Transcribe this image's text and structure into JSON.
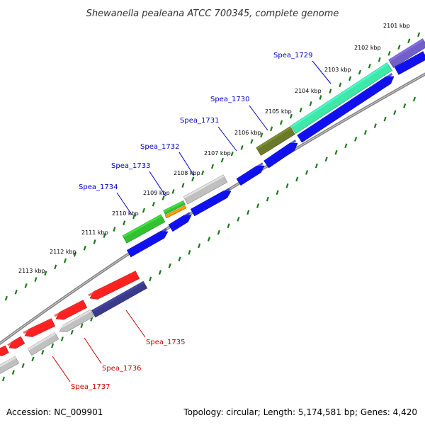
{
  "title": "Shewanella pealeana ATCC 700345, complete genome",
  "footer": {
    "accession": "Accession: NC_009901",
    "summary": "Topology: circular; Length: 5,174,581 bp; Genes: 4,420"
  },
  "colors": {
    "tick": "#1a7a1a",
    "backbone": "#808080",
    "label_blue": "#0000cc",
    "label_red": "#cc0000"
  },
  "scale_labels": [
    "2101 kbp",
    "2102 kbp",
    "2103 kbp",
    "2104 kbp",
    "2105 kbp",
    "2106 kbp",
    "2107 kbp",
    "2108 kbp",
    "2109 kbp",
    "2110 kbp",
    "2111 kbp",
    "2112 kbp",
    "2113 kbp"
  ],
  "gene_labels": [
    {
      "name": "Spea_1729",
      "strand": "forward"
    },
    {
      "name": "Spea_1730",
      "strand": "forward"
    },
    {
      "name": "Spea_1731",
      "strand": "forward"
    },
    {
      "name": "Spea_1732",
      "strand": "forward"
    },
    {
      "name": "Spea_1733",
      "strand": "forward"
    },
    {
      "name": "Spea_1734",
      "strand": "forward"
    },
    {
      "name": "Spea_1735",
      "strand": "reverse"
    },
    {
      "name": "Spea_1736",
      "strand": "reverse"
    },
    {
      "name": "Spea_1737",
      "strand": "reverse"
    }
  ],
  "features": [
    {
      "track": "outer",
      "color": "#7060c8"
    },
    {
      "track": "outer",
      "color": "#3de8a8"
    },
    {
      "track": "outer",
      "color": "#6b7a2a"
    },
    {
      "track": "outer",
      "color": "#c0c0c0"
    },
    {
      "track": "outer",
      "color": "#33c033"
    },
    {
      "track": "outer",
      "color": "#ff8800"
    },
    {
      "track": "outer",
      "color": "#33c033"
    },
    {
      "track": "outer",
      "color": "#ff2020"
    },
    {
      "track": "outer",
      "color": "#ff2020"
    },
    {
      "track": "outer",
      "color": "#ff2020"
    },
    {
      "track": "outer",
      "color": "#ff2020"
    },
    {
      "track": "outer",
      "color": "#ff2020"
    },
    {
      "track": "inner",
      "color": "#1010ee"
    },
    {
      "track": "inner",
      "color": "#1010ee"
    },
    {
      "track": "inner",
      "color": "#1010ee"
    },
    {
      "track": "inner",
      "color": "#1010ee"
    },
    {
      "track": "inner",
      "color": "#1010ee"
    },
    {
      "track": "inner",
      "color": "#1010ee"
    },
    {
      "track": "inner",
      "color": "#1010ee"
    },
    {
      "track": "inner",
      "color": "#3a3a8a"
    },
    {
      "track": "inner",
      "color": "#c0c0c0"
    },
    {
      "track": "inner",
      "color": "#c0c0c0"
    },
    {
      "track": "inner",
      "color": "#c0c0c0"
    }
  ]
}
